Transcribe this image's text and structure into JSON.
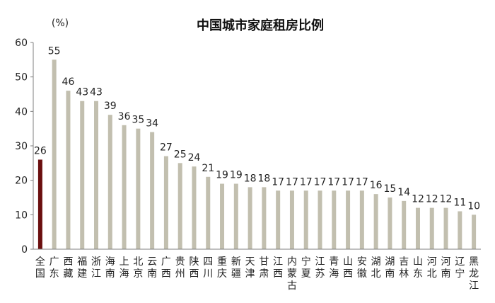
{
  "chart_data": {
    "type": "bar",
    "title": "中国城市家庭租房比例",
    "unit": "(%)",
    "ylim": [
      0,
      60
    ],
    "yticks": [
      0,
      10,
      20,
      30,
      40,
      50,
      60
    ],
    "grid": false,
    "legend": "none",
    "colors": {
      "highlight": "#6b0f0f",
      "default": "#c2bfaf",
      "axis": "#7f7f7f"
    },
    "categories": [
      "全国",
      "广东",
      "西藏",
      "福建",
      "浙江",
      "海南",
      "上海",
      "北京",
      "云南",
      "广西",
      "贵州",
      "陕西",
      "四川",
      "重庆",
      "新疆",
      "天津",
      "甘肃",
      "江西",
      "内蒙古",
      "宁夏",
      "江苏",
      "青海",
      "山西",
      "安徽",
      "湖北",
      "湖南",
      "吉林",
      "山东",
      "河北",
      "河南",
      "辽宁",
      "黑龙江"
    ],
    "values": [
      26,
      55,
      46,
      43,
      43,
      39,
      36,
      35,
      34,
      27,
      25,
      24,
      21,
      19,
      19,
      18,
      18,
      17,
      17,
      17,
      17,
      17,
      17,
      17,
      16,
      15,
      14,
      12,
      12,
      12,
      11,
      10
    ],
    "highlight_index": 0
  }
}
